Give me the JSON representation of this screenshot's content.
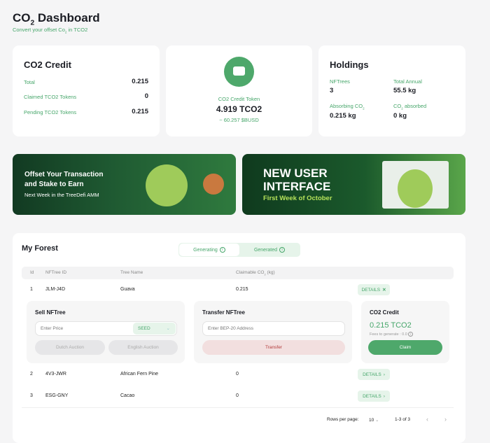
{
  "header": {
    "title_prefix": "CO",
    "title_sub": "2",
    "title_suffix": " Dashboard",
    "subtitle_prefix": "Convert your offset Co",
    "subtitle_sub": "2",
    "subtitle_suffix": " in TCO2"
  },
  "credit_card": {
    "title": "CO2 Credit",
    "rows": [
      {
        "label": "Total",
        "value": "0.215"
      },
      {
        "label": "Claimed TCO2 Tokens",
        "value": "0"
      },
      {
        "label": "Pending TCO2 Tokens",
        "value": "0.215"
      }
    ]
  },
  "token_card": {
    "icon": "wallet-icon",
    "label": "CO2 Credit Token",
    "value": "4.919 TCO2",
    "usd": "~ 60.257 $BUSD"
  },
  "holdings": {
    "title": "Holdings",
    "nftrees_label": "NFTrees",
    "nftrees": "3",
    "annual_label": "Total Annual",
    "annual": "55.5 kg",
    "absorbing_label": "Absorbing CO",
    "absorbing": "0.215 kg",
    "absorbed_label": " absorbed",
    "absorbed_prefix": "CO",
    "absorbed": "0 kg",
    "sub": "2"
  },
  "banners": [
    {
      "line1": "Offset Your Transaction",
      "line2": "and Stake to Earn",
      "line3": "Next Week in the TreeDefi AMM"
    },
    {
      "line1": "NEW USER",
      "line2": "INTERFACE",
      "line3": "First Week of October"
    }
  ],
  "forest": {
    "title": "My Forest",
    "tabs": [
      {
        "label": "Generating"
      },
      {
        "label": "Generated"
      }
    ],
    "columns": [
      "Id",
      "NFTree ID",
      "Tree Name",
      "Claimable CO",
      "(kg)"
    ],
    "rows": [
      {
        "id": "1",
        "nftree": "JLM-J4D",
        "name": "Guava",
        "claimable": "0.215",
        "action": "DETAILS"
      },
      {
        "id": "2",
        "nftree": "4V3-JWR",
        "name": "African Fern Pine",
        "claimable": "0",
        "action": "DETAILS"
      },
      {
        "id": "3",
        "nftree": "ESG-GNY",
        "name": "Cacao",
        "claimable": "0",
        "action": "DETAILS"
      }
    ],
    "sell": {
      "title": "Sell NFTree",
      "placeholder": "Enter Price",
      "currency": "SEED",
      "dutch": "Dutch Auction",
      "english": "English Auction"
    },
    "transfer": {
      "title": "Transfer NFTree",
      "placeholder": "Enter BEP-20 Address",
      "button": "Transfer"
    },
    "credit": {
      "title": "CO2 Credit",
      "value": "0.215 TCO2",
      "fees": "Fees to generate : 0.0",
      "button": "Claim"
    },
    "pagination": {
      "rows_label": "Rows per page:",
      "rows_value": "10",
      "range": "1-3 of 3"
    }
  },
  "colors": {
    "accent": "#46a66a",
    "danger_bg": "#f2dfdf",
    "danger_text": "#b23a3a"
  }
}
